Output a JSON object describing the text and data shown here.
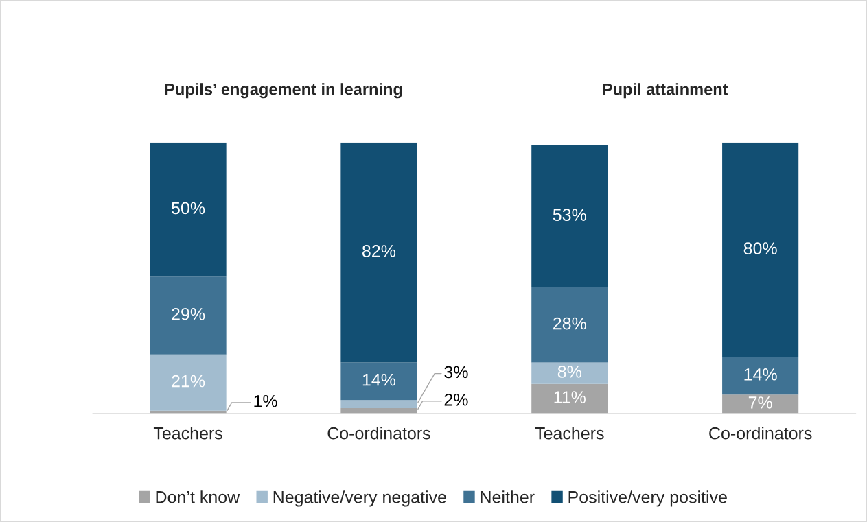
{
  "chart_data": [
    {
      "type": "bar",
      "title": "Pupils’ engagement in learning",
      "categories": [
        "Teachers",
        "Co-ordinators"
      ],
      "stacked": true,
      "legend": "bottom",
      "series": [
        {
          "name": "Don’t know",
          "color": "#a5a5a5",
          "values": [
            1,
            2
          ],
          "value_labels": [
            "1%",
            "2%"
          ]
        },
        {
          "name": "Negative/very negative",
          "color": "#a2bccf",
          "values": [
            21,
            3
          ],
          "value_labels": [
            "21%",
            "3%"
          ]
        },
        {
          "name": "Neither",
          "color": "#3f7293",
          "values": [
            29,
            14
          ],
          "value_labels": [
            "29%",
            "14%"
          ]
        },
        {
          "name": "Positive/very positive",
          "color": "#124f73",
          "values": [
            50,
            82
          ],
          "value_labels": [
            "50%",
            "82%"
          ]
        }
      ]
    },
    {
      "type": "bar",
      "title": "Pupil attainment",
      "categories": [
        "Teachers",
        "Co-ordinators"
      ],
      "stacked": true,
      "series": [
        {
          "color": "#a5a5a5",
          "values": [
            11,
            7
          ],
          "value_labels": [
            "11%",
            "7%"
          ]
        },
        {
          "color": "#a2bccf",
          "values": [
            8,
            null
          ],
          "value_labels": [
            "8%",
            null
          ]
        },
        {
          "color": "#3f7293",
          "values": [
            28,
            14
          ],
          "value_labels": [
            "28%",
            "14%"
          ]
        },
        {
          "color": "#124f73",
          "values": [
            53,
            80
          ],
          "value_labels": [
            "53%",
            "80%"
          ]
        }
      ]
    }
  ]
}
